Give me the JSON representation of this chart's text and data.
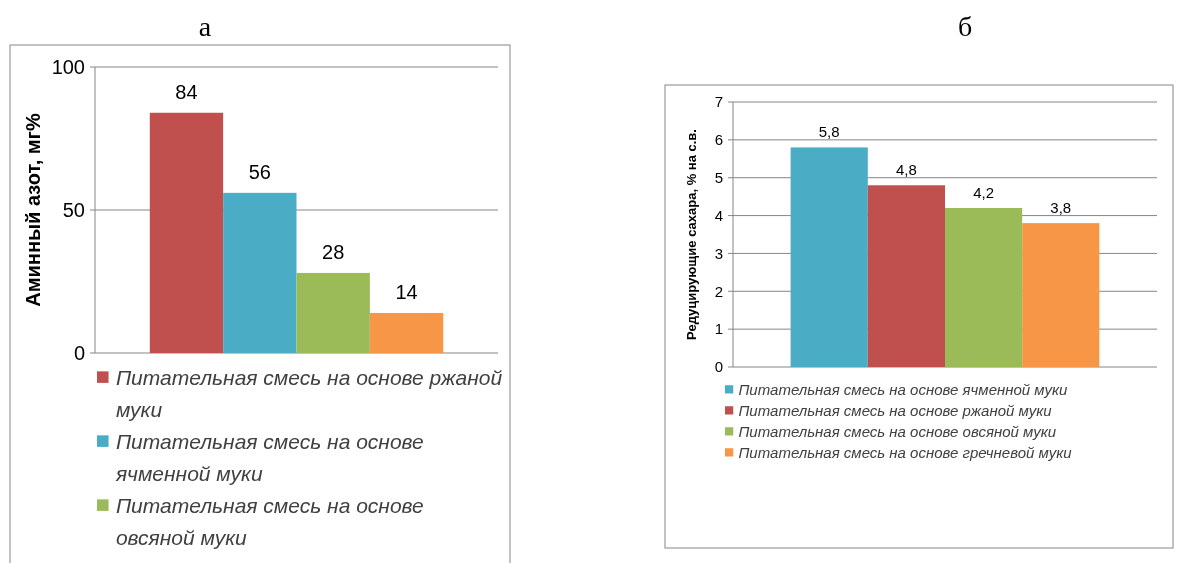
{
  "chart_data": [
    {
      "type": "bar",
      "title": "а",
      "ylabel": "Аминный азот, мг%",
      "categories": [
        null
      ],
      "series": [
        {
          "name": "Питательная смесь на основе ржаной муки",
          "color": "#c0504d",
          "values": [
            84
          ]
        },
        {
          "name": "Питательная смесь на основе ячменной муки",
          "color": "#4bacc6",
          "values": [
            56
          ]
        },
        {
          "name": "Питательная смесь на основе овсяной муки",
          "color": "#9bbb59",
          "values": [
            28
          ]
        },
        {
          "color": "#f79646",
          "values": [
            14
          ]
        }
      ],
      "ylim": [
        0,
        100
      ],
      "yticks": [
        0,
        50,
        100
      ],
      "grid": "y",
      "legend": "bottom",
      "data_labels": true
    },
    {
      "type": "bar",
      "title": "б",
      "ylabel": "Редуцирующие сахара, % на с.в.",
      "categories": [
        null
      ],
      "series": [
        {
          "name": "Питательная смесь на основе ячменной муки",
          "color": "#4bacc6",
          "values": [
            5.8
          ],
          "value_labels": [
            "5,8"
          ]
        },
        {
          "name": "Питательная смесь на основе ржаной муки",
          "color": "#c0504d",
          "values": [
            4.8
          ],
          "value_labels": [
            "4,8"
          ]
        },
        {
          "name": "Питательная смесь на основе овсяной муки",
          "color": "#9bbb59",
          "values": [
            4.2
          ],
          "value_labels": [
            "4,2"
          ]
        },
        {
          "name": "Питательная смесь на основе гречневой муки",
          "color": "#f79646",
          "values": [
            3.8
          ],
          "value_labels": [
            "3,8"
          ]
        }
      ],
      "ylim": [
        0,
        7
      ],
      "yticks": [
        0,
        1,
        2,
        3,
        4,
        5,
        6,
        7
      ],
      "grid": "y",
      "legend": "bottom"
    }
  ]
}
